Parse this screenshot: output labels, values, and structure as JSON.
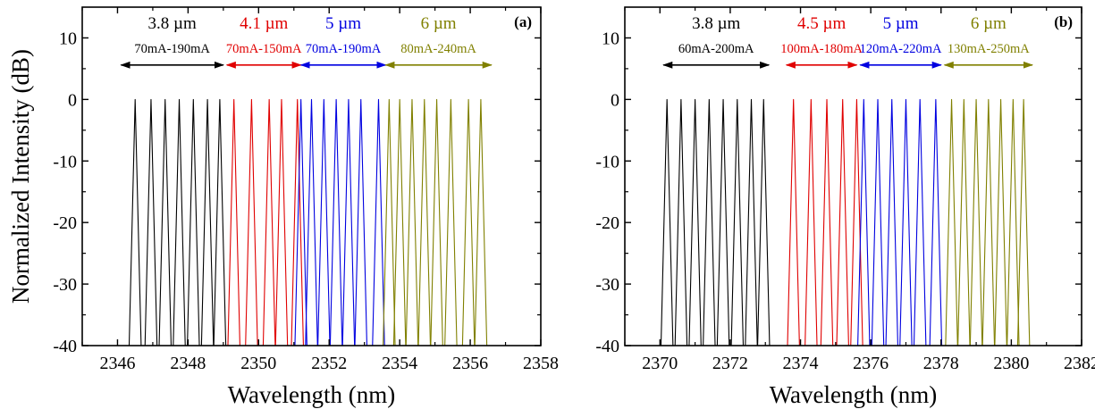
{
  "chart_data": [
    {
      "type": "line",
      "panel_label": "(a)",
      "xlabel": "Wavelength (nm)",
      "ylabel": "Normalized Intensity (dB)",
      "xlim": [
        2345,
        2358
      ],
      "ylim": [
        -40,
        15
      ],
      "xticks": [
        2346,
        2348,
        2350,
        2352,
        2354,
        2356,
        2358
      ],
      "yticks": [
        10,
        0,
        -10,
        -20,
        -30,
        -40
      ],
      "grid": false,
      "groups": [
        {
          "width_label": "3.8 µm",
          "current_range": "70mA-190mA",
          "color": "#000000",
          "arrow_span": [
            2346.1,
            2349.0
          ],
          "peaks": [
            2346.5,
            2346.95,
            2347.35,
            2347.75,
            2348.15,
            2348.55,
            2348.9
          ]
        },
        {
          "width_label": "4.1 µm",
          "current_range": "70mA-150mA",
          "color": "#e00000",
          "arrow_span": [
            2349.1,
            2351.2
          ],
          "peaks": [
            2349.3,
            2349.8,
            2350.3,
            2350.65,
            2351.1
          ]
        },
        {
          "width_label": "5 µm",
          "current_range": "70mA-190mA",
          "color": "#0000e0",
          "arrow_span": [
            2351.2,
            2353.6
          ],
          "peaks": [
            2351.2,
            2351.5,
            2351.85,
            2352.2,
            2352.55,
            2352.9,
            2353.4
          ]
        },
        {
          "width_label": "6 µm",
          "current_range": "80mA-240mA",
          "color": "#808000",
          "arrow_span": [
            2353.6,
            2356.6
          ],
          "peaks": [
            2353.7,
            2354.0,
            2354.35,
            2354.7,
            2355.05,
            2355.45,
            2355.95,
            2356.3
          ]
        }
      ]
    },
    {
      "type": "line",
      "panel_label": "(b)",
      "xlabel": "Wavelength (nm)",
      "ylabel": "",
      "xlim": [
        2369,
        2382
      ],
      "ylim": [
        -40,
        15
      ],
      "xticks": [
        2370,
        2372,
        2374,
        2376,
        2378,
        2380,
        2382
      ],
      "yticks": [
        10,
        0,
        -10,
        -20,
        -30,
        -40
      ],
      "grid": false,
      "groups": [
        {
          "width_label": "3.8 µm",
          "current_range": "60mA-200mA",
          "color": "#000000",
          "arrow_span": [
            2370.1,
            2373.1
          ],
          "peaks": [
            2370.2,
            2370.6,
            2371.0,
            2371.4,
            2371.8,
            2372.2,
            2372.6,
            2372.95
          ]
        },
        {
          "width_label": "4.5 µm",
          "current_range": "100mA-180mA",
          "color": "#e00000",
          "arrow_span": [
            2373.6,
            2375.6
          ],
          "peaks": [
            2373.8,
            2374.3,
            2374.75,
            2375.2,
            2375.6
          ]
        },
        {
          "width_label": "5 µm",
          "current_range": "120mA-220mA",
          "color": "#0000e0",
          "arrow_span": [
            2375.7,
            2378.0
          ],
          "peaks": [
            2375.8,
            2376.2,
            2376.6,
            2377.0,
            2377.4,
            2377.85
          ]
        },
        {
          "width_label": "6 µm",
          "current_range": "130mA-250mA",
          "color": "#808000",
          "arrow_span": [
            2378.1,
            2380.6
          ],
          "peaks": [
            2378.3,
            2378.65,
            2379.0,
            2379.35,
            2379.7,
            2380.05,
            2380.35
          ]
        }
      ]
    }
  ]
}
